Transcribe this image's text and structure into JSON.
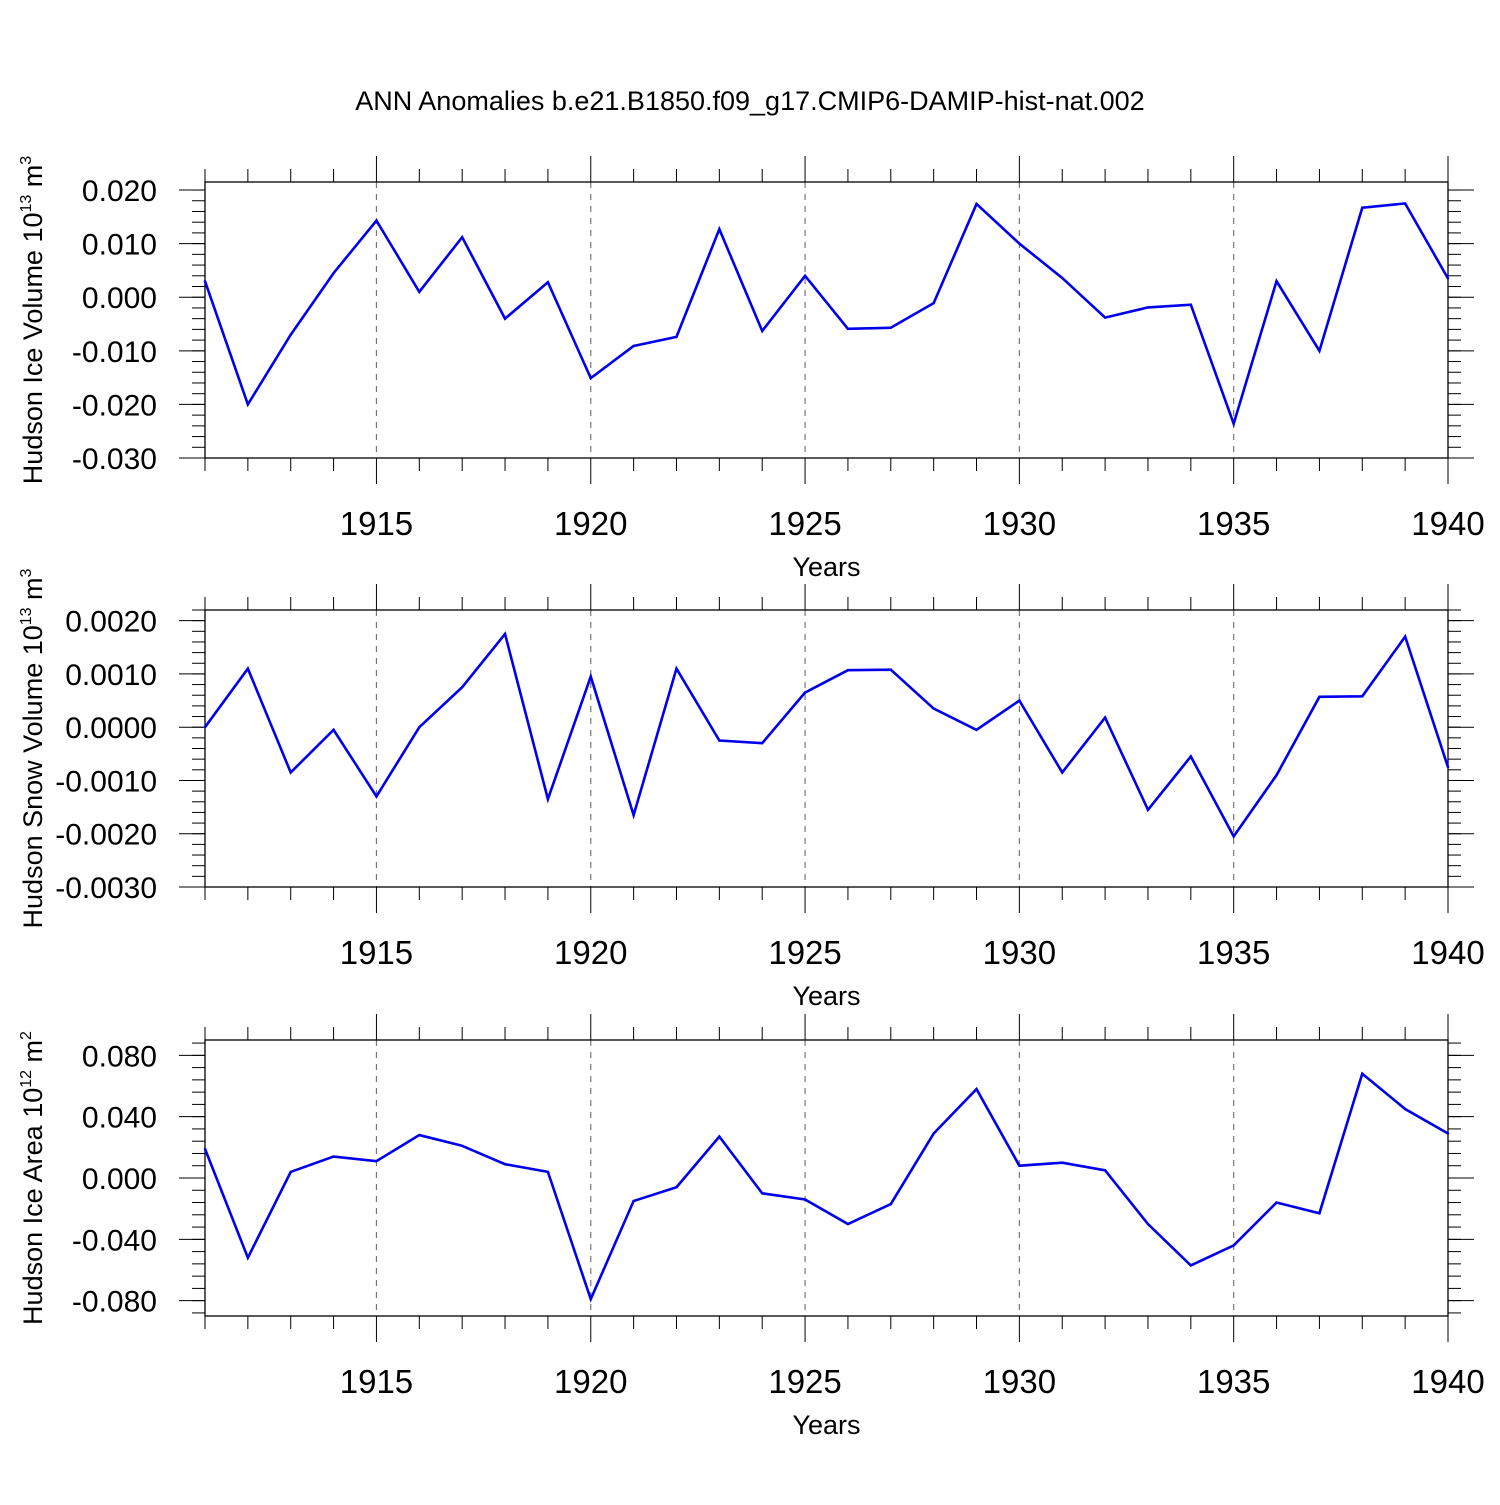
{
  "chart_data": {
    "type": "line",
    "title": "ANN Anomalies b.e21.B1850.f09_g17.CMIP6-DAMIP-hist-nat.002",
    "line_color": "#0000ee",
    "grid_color": "#777777",
    "x": [
      1911,
      1912,
      1913,
      1914,
      1915,
      1916,
      1917,
      1918,
      1919,
      1920,
      1921,
      1922,
      1923,
      1924,
      1925,
      1926,
      1927,
      1928,
      1929,
      1930,
      1931,
      1932,
      1933,
      1934,
      1935,
      1936,
      1937,
      1938,
      1939,
      1940
    ],
    "xlim": [
      1911,
      1940
    ],
    "panels": [
      {
        "name": "ice-volume",
        "ylabel": {
          "main": "Hudson Ice Volume 10",
          "exp": "13",
          "unit": " m",
          "unit_exp": "3"
        },
        "xlabel": "Years",
        "ylim": [
          -0.03,
          0.0215
        ],
        "yticks": [
          0.02,
          0.01,
          0.0,
          -0.01,
          -0.02,
          -0.03
        ],
        "ytick_labels": [
          "0.020",
          "0.010",
          "0.000",
          "-0.010",
          "-0.020",
          "-0.030"
        ],
        "yminor_step": 0.002,
        "xticks": [
          1915,
          1920,
          1925,
          1930,
          1935,
          1940
        ],
        "xtick_labels": [
          "1915",
          "1920",
          "1925",
          "1930",
          "1935",
          "1940"
        ],
        "grid_x": [
          1915,
          1920,
          1925,
          1930,
          1935
        ],
        "values": [
          0.003,
          -0.02,
          -0.007,
          0.0045,
          0.0143,
          0.001,
          0.0112,
          -0.004,
          0.0028,
          -0.0151,
          -0.0091,
          -0.0074,
          0.0127,
          -0.0063,
          0.004,
          -0.0059,
          -0.0057,
          -0.0011,
          0.0174,
          0.01,
          0.0036,
          -0.0038,
          -0.0019,
          -0.0014,
          -0.0236,
          0.003,
          -0.01,
          0.0167,
          0.0175,
          0.0035
        ]
      },
      {
        "name": "snow-volume",
        "ylabel": {
          "main": "Hudson Snow Volume 10",
          "exp": "13",
          "unit": " m",
          "unit_exp": "3"
        },
        "xlabel": "Years",
        "ylim": [
          -0.003,
          0.0022
        ],
        "yticks": [
          0.002,
          0.001,
          0.0,
          -0.001,
          -0.002,
          -0.003
        ],
        "ytick_labels": [
          "0.0020",
          "0.0010",
          "0.0000",
          "-0.0010",
          "-0.0020",
          "-0.0030"
        ],
        "yminor_step": 0.0002,
        "xticks": [
          1915,
          1920,
          1925,
          1930,
          1935,
          1940
        ],
        "xtick_labels": [
          "1915",
          "1920",
          "1925",
          "1930",
          "1935",
          "1940"
        ],
        "grid_x": [
          1915,
          1920,
          1925,
          1930,
          1935
        ],
        "values": [
          0.0,
          0.0011,
          -0.00085,
          -5e-05,
          -0.0013,
          0.0,
          0.00075,
          0.00175,
          -0.00135,
          0.00095,
          -0.00165,
          0.0011,
          -0.00025,
          -0.0003,
          0.00065,
          0.00107,
          0.00108,
          0.00035,
          -5e-05,
          0.0005,
          -0.00085,
          0.00018,
          -0.00155,
          -0.00055,
          -0.00205,
          -0.0009,
          0.00057,
          0.00058,
          0.0017,
          -0.00075
        ]
      },
      {
        "name": "ice-area",
        "ylabel": {
          "main": "Hudson Ice Area 10",
          "exp": "12",
          "unit": " m",
          "unit_exp": "2"
        },
        "xlabel": "Years",
        "ylim": [
          -0.09,
          0.09
        ],
        "yticks": [
          0.08,
          0.04,
          0.0,
          -0.04,
          -0.08
        ],
        "ytick_labels": [
          "0.080",
          "0.040",
          "0.000",
          "-0.040",
          "-0.080"
        ],
        "yminor_step": 0.008,
        "xticks": [
          1915,
          1920,
          1925,
          1930,
          1935,
          1940
        ],
        "xtick_labels": [
          "1915",
          "1920",
          "1925",
          "1930",
          "1935",
          "1940"
        ],
        "grid_x": [
          1915,
          1920,
          1925,
          1930,
          1935
        ],
        "values": [
          0.019,
          -0.052,
          0.004,
          0.014,
          0.011,
          0.028,
          0.021,
          0.009,
          0.004,
          -0.079,
          -0.015,
          -0.006,
          0.027,
          -0.01,
          -0.014,
          -0.03,
          -0.017,
          0.029,
          0.058,
          0.008,
          0.01,
          0.005,
          -0.03,
          -0.057,
          -0.044,
          -0.016,
          -0.023,
          0.068,
          0.045,
          0.029
        ]
      }
    ]
  }
}
